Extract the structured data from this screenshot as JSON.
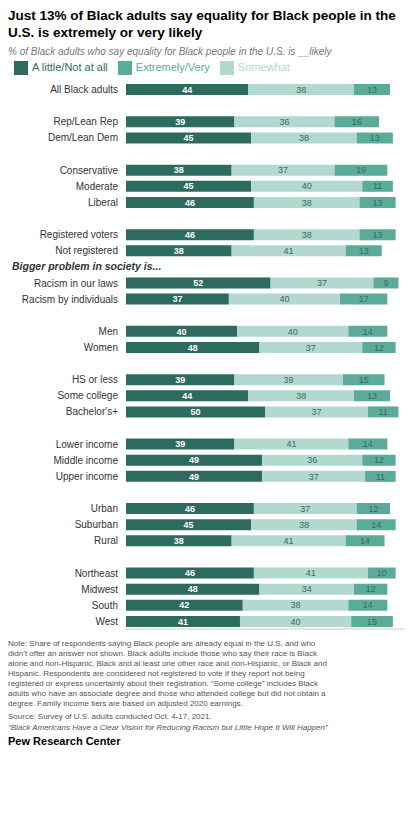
{
  "chart_data": {
    "type": "bar",
    "orientation": "horizontal",
    "stacked": true,
    "data_labels": true,
    "tick_labels": "y",
    "grid": false,
    "legend": "top",
    "title": "Just 13% of Black adults say equality for Black people in the U.S. is extremely or very likely",
    "subtitle": "% of Black adults who say equality for Black people in the U.S. is __likely",
    "categories": [
      "All Black adults",
      null,
      "Rep/Lean Rep",
      "Dem/Lean Dem",
      null,
      "Conservative",
      "Moderate",
      "Liberal",
      null,
      "Registered voters",
      "Not registered",
      "Bigger problem in society is...",
      "Racism in our laws",
      "Racism by individuals",
      null,
      "Men",
      "Women",
      null,
      "HS or less",
      "Some college",
      "Bachelor's+",
      null,
      "Lower income",
      "Middle income",
      "Upper income",
      null,
      "Urban",
      "Suburban",
      "Rural",
      null,
      "Northeast",
      "Midwest",
      "South",
      "West"
    ],
    "series": [
      {
        "name": "A little/Not at all",
        "color": "#2d6b5e",
        "values": [
          44,
          null,
          39,
          45,
          null,
          38,
          45,
          46,
          null,
          46,
          38,
          null,
          52,
          37,
          null,
          40,
          48,
          null,
          39,
          44,
          50,
          null,
          39,
          49,
          49,
          null,
          46,
          45,
          38,
          null,
          46,
          48,
          42,
          41
        ]
      },
      {
        "name": "Somewhat",
        "color": "#b2d8d0",
        "values": [
          38,
          null,
          36,
          38,
          null,
          37,
          40,
          38,
          null,
          38,
          41,
          null,
          37,
          40,
          null,
          40,
          37,
          null,
          39,
          38,
          37,
          null,
          41,
          36,
          37,
          null,
          37,
          38,
          41,
          null,
          41,
          34,
          38,
          40
        ]
      },
      {
        "name": "Extremely/Very",
        "color": "#5aab99",
        "values": [
          13,
          null,
          16,
          13,
          null,
          19,
          11,
          13,
          null,
          13,
          13,
          null,
          9,
          17,
          null,
          14,
          12,
          null,
          15,
          13,
          11,
          null,
          14,
          12,
          11,
          null,
          12,
          14,
          14,
          null,
          10,
          12,
          14,
          15
        ]
      }
    ],
    "xlim": [
      0,
      100
    ],
    "annotations": [
      "Note: Share of respondents saying Black people are already equal in the U.S. and who\ndidn’t offer an answer not shown. Black adults include those who say their race is Black\nalone and non-Hispanic, Black and at least one other race and non-Hispanic, or Black and\nHispanic. Respondents are considered not registered to vote if they report not being\nregistered or express uncertainty about their registration. “Some college” includes Black\nadults who have an associate degree and those who attended college but did not obtain a\ndegree. Family income tiers are based on adjusted 2020 earnings.",
      "Source: Survey of U.S. adults conducted Oct. 4-17, 2021.",
      "“Black Americans Have a Clear Vision for Reducing Racism but Little Hope It Will Happen”",
      "Pew Research Center"
    ]
  }
}
